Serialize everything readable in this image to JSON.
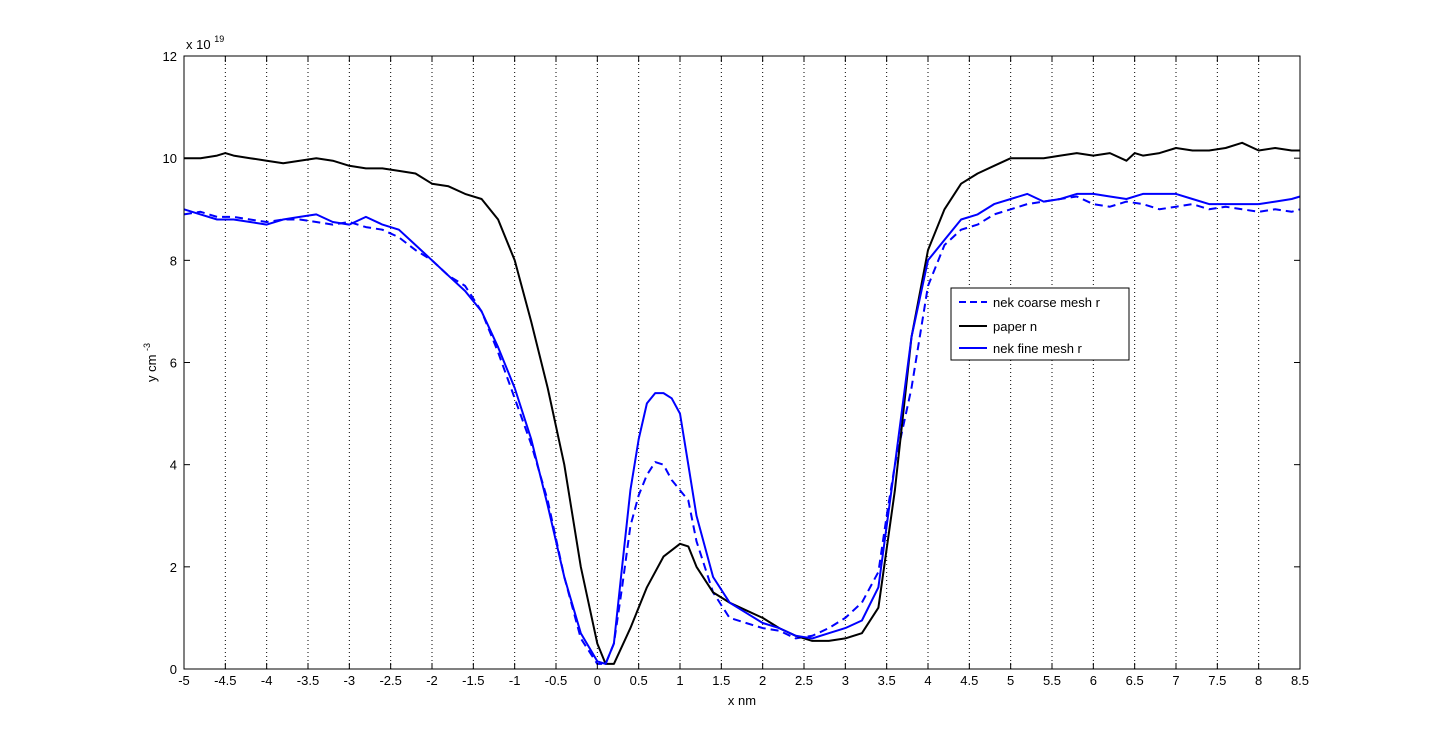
{
  "chart_data": {
    "type": "line",
    "title": "",
    "xlabel": "x nm",
    "ylabel": "y cm",
    "ylabel_superscript": "-3",
    "scale_label": "x 10",
    "scale_exponent": "19",
    "xlim": [
      -5,
      8.5
    ],
    "ylim": [
      0,
      12
    ],
    "x_ticks": [
      -5,
      -4.5,
      -4,
      -3.5,
      -3,
      -2.5,
      -2,
      -1.5,
      -1,
      -0.5,
      0,
      0.5,
      1,
      1.5,
      2,
      2.5,
      3,
      3.5,
      4,
      4.5,
      5,
      5.5,
      6,
      6.5,
      7,
      7.5,
      8,
      8.5
    ],
    "y_ticks": [
      0,
      2,
      4,
      6,
      8,
      10,
      12
    ],
    "x_grid": "dotted",
    "y_grid": false,
    "legend_position": "center-right",
    "series": [
      {
        "name": "nek coarse mesh r",
        "color": "#0000ff",
        "style": "dashed",
        "x": [
          -5,
          -4.8,
          -4.6,
          -4.4,
          -4.2,
          -4.0,
          -3.8,
          -3.6,
          -3.4,
          -3.2,
          -3.0,
          -2.8,
          -2.6,
          -2.4,
          -2.2,
          -2.0,
          -1.8,
          -1.6,
          -1.4,
          -1.2,
          -1.0,
          -0.8,
          -0.6,
          -0.4,
          -0.2,
          0,
          0.1,
          0.2,
          0.3,
          0.4,
          0.5,
          0.6,
          0.7,
          0.8,
          0.9,
          1.0,
          1.1,
          1.2,
          1.4,
          1.6,
          1.8,
          2.0,
          2.2,
          2.4,
          2.6,
          2.8,
          3.0,
          3.2,
          3.4,
          3.5,
          3.6,
          3.8,
          4.0,
          4.2,
          4.4,
          4.6,
          4.8,
          5.0,
          5.2,
          5.4,
          5.6,
          5.8,
          6.0,
          6.2,
          6.4,
          6.6,
          6.8,
          7.0,
          7.2,
          7.4,
          7.6,
          7.8,
          8.0,
          8.2,
          8.4,
          8.5
        ],
        "y": [
          8.9,
          8.95,
          8.85,
          8.85,
          8.8,
          8.75,
          8.8,
          8.8,
          8.75,
          8.7,
          8.75,
          8.65,
          8.6,
          8.45,
          8.2,
          8.0,
          7.7,
          7.5,
          7.0,
          6.2,
          5.3,
          4.4,
          3.3,
          1.8,
          0.6,
          0.1,
          0.1,
          0.5,
          1.6,
          2.8,
          3.4,
          3.8,
          4.05,
          4.0,
          3.7,
          3.5,
          3.3,
          2.5,
          1.5,
          1.0,
          0.9,
          0.8,
          0.75,
          0.6,
          0.65,
          0.8,
          1.0,
          1.3,
          1.9,
          3.0,
          4.0,
          5.5,
          7.5,
          8.3,
          8.6,
          8.7,
          8.9,
          9.0,
          9.1,
          9.15,
          9.2,
          9.25,
          9.1,
          9.05,
          9.15,
          9.1,
          9.0,
          9.05,
          9.1,
          9.0,
          9.05,
          9.0,
          8.95,
          9.0,
          8.95,
          9.0
        ]
      },
      {
        "name": "paper n",
        "color": "#000000",
        "style": "solid",
        "x": [
          -5,
          -4.8,
          -4.6,
          -4.5,
          -4.4,
          -4.2,
          -4.0,
          -3.8,
          -3.6,
          -3.4,
          -3.2,
          -3.0,
          -2.8,
          -2.6,
          -2.4,
          -2.2,
          -2.0,
          -1.8,
          -1.6,
          -1.4,
          -1.2,
          -1.0,
          -0.8,
          -0.6,
          -0.4,
          -0.2,
          0,
          0.1,
          0.2,
          0.4,
          0.6,
          0.8,
          1.0,
          1.1,
          1.2,
          1.4,
          1.6,
          1.8,
          2.0,
          2.2,
          2.4,
          2.6,
          2.8,
          3.0,
          3.2,
          3.4,
          3.6,
          3.8,
          4.0,
          4.2,
          4.4,
          4.6,
          4.8,
          5.0,
          5.2,
          5.4,
          5.6,
          5.8,
          6.0,
          6.2,
          6.4,
          6.5,
          6.6,
          6.8,
          7.0,
          7.2,
          7.4,
          7.6,
          7.8,
          8.0,
          8.2,
          8.4,
          8.5
        ],
        "y": [
          10.0,
          10.0,
          10.05,
          10.1,
          10.05,
          10.0,
          9.95,
          9.9,
          9.95,
          10.0,
          9.95,
          9.85,
          9.8,
          9.8,
          9.75,
          9.7,
          9.5,
          9.45,
          9.3,
          9.2,
          8.8,
          8.0,
          6.8,
          5.5,
          4.0,
          2.0,
          0.5,
          0.1,
          0.1,
          0.8,
          1.6,
          2.2,
          2.45,
          2.4,
          2.0,
          1.5,
          1.3,
          1.15,
          1.0,
          0.8,
          0.65,
          0.55,
          0.55,
          0.6,
          0.7,
          1.2,
          3.5,
          6.5,
          8.2,
          9.0,
          9.5,
          9.7,
          9.85,
          10.0,
          10.0,
          10.0,
          10.05,
          10.1,
          10.05,
          10.1,
          9.95,
          10.1,
          10.05,
          10.1,
          10.2,
          10.15,
          10.15,
          10.2,
          10.3,
          10.15,
          10.2,
          10.15,
          10.15
        ]
      },
      {
        "name": "nek fine mesh r",
        "color": "#0000ff",
        "style": "solid",
        "x": [
          -5,
          -4.8,
          -4.6,
          -4.4,
          -4.2,
          -4.0,
          -3.8,
          -3.6,
          -3.4,
          -3.2,
          -3.0,
          -2.8,
          -2.6,
          -2.4,
          -2.2,
          -2.0,
          -1.8,
          -1.6,
          -1.4,
          -1.2,
          -1.0,
          -0.8,
          -0.6,
          -0.4,
          -0.2,
          0,
          0.1,
          0.2,
          0.3,
          0.4,
          0.5,
          0.6,
          0.7,
          0.8,
          0.9,
          1.0,
          1.1,
          1.2,
          1.4,
          1.6,
          1.8,
          2.0,
          2.2,
          2.4,
          2.6,
          2.8,
          3.0,
          3.2,
          3.4,
          3.6,
          3.8,
          4.0,
          4.2,
          4.4,
          4.6,
          4.8,
          5.0,
          5.2,
          5.4,
          5.6,
          5.8,
          6.0,
          6.2,
          6.4,
          6.6,
          6.8,
          7.0,
          7.2,
          7.4,
          7.6,
          7.8,
          8.0,
          8.2,
          8.4,
          8.5
        ],
        "y": [
          9.0,
          8.9,
          8.8,
          8.8,
          8.75,
          8.7,
          8.8,
          8.85,
          8.9,
          8.75,
          8.7,
          8.85,
          8.7,
          8.6,
          8.3,
          8.0,
          7.7,
          7.4,
          7.0,
          6.3,
          5.5,
          4.5,
          3.2,
          1.8,
          0.7,
          0.15,
          0.1,
          0.5,
          2.0,
          3.5,
          4.5,
          5.2,
          5.4,
          5.4,
          5.3,
          5.0,
          4.0,
          3.0,
          1.8,
          1.3,
          1.1,
          0.9,
          0.8,
          0.65,
          0.6,
          0.7,
          0.8,
          0.95,
          1.6,
          4.0,
          6.5,
          8.0,
          8.4,
          8.8,
          8.9,
          9.1,
          9.2,
          9.3,
          9.15,
          9.2,
          9.3,
          9.3,
          9.25,
          9.2,
          9.3,
          9.3,
          9.3,
          9.2,
          9.1,
          9.1,
          9.1,
          9.1,
          9.15,
          9.2,
          9.25
        ]
      }
    ]
  }
}
